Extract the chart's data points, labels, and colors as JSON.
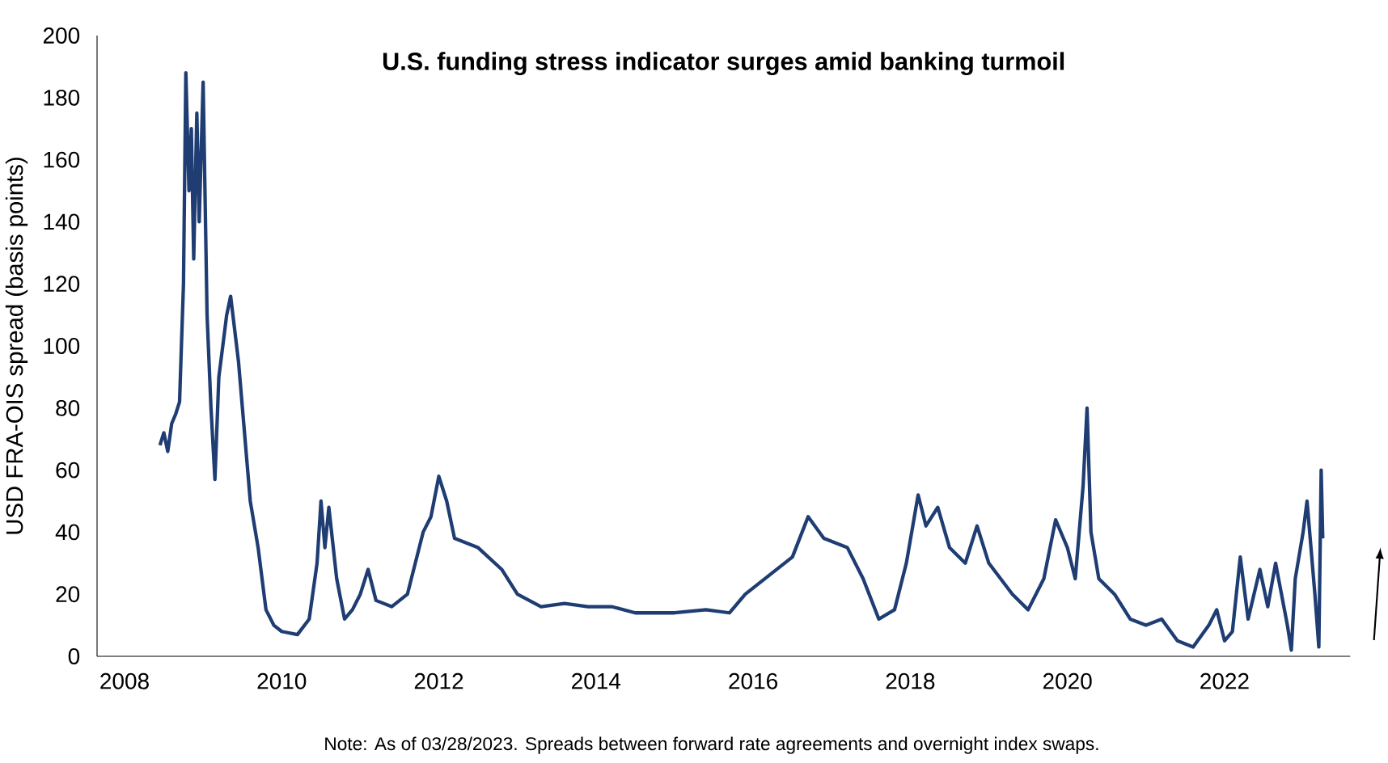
{
  "chart_data": {
    "type": "line",
    "title": "**U.S. funding stress indicator surges amid banking turmoil**",
    "ylabel": "USD FRA-OIS spread (basis points)",
    "annotations": [
      "Note: As of 03/28/2023. Spreads between forward rate agreements and overnight index swaps."
    ],
    "xlim": [
      2007.65,
      2023.6
    ],
    "xticks": [
      2008,
      2010,
      2012,
      2014,
      2016,
      2018,
      2020,
      2022
    ],
    "ylim": [
      0,
      200
    ],
    "yticks": [
      0,
      20,
      40,
      60,
      80,
      100,
      120,
      140,
      160,
      180,
      200
    ],
    "grid": false,
    "marker": "none",
    "line_style": "solid",
    "series": [
      {
        "color": "#1f3d73",
        "x": [
          2008.45,
          2008.5,
          2008.55,
          2008.6,
          2008.65,
          2008.7,
          2008.75,
          2008.78,
          2008.82,
          2008.85,
          2008.88,
          2008.92,
          2008.95,
          2009.0,
          2009.05,
          2009.1,
          2009.15,
          2009.2,
          2009.25,
          2009.3,
          2009.35,
          2009.45,
          2009.5,
          2009.6,
          2009.7,
          2009.8,
          2009.9,
          2010.0,
          2010.2,
          2010.35,
          2010.45,
          2010.5,
          2010.55,
          2010.6,
          2010.7,
          2010.8,
          2010.9,
          2011.0,
          2011.1,
          2011.2,
          2011.4,
          2011.6,
          2011.8,
          2011.9,
          2012.0,
          2012.1,
          2012.2,
          2012.5,
          2012.8,
          2013.0,
          2013.3,
          2013.6,
          2013.9,
          2014.2,
          2014.5,
          2015.0,
          2015.4,
          2015.7,
          2015.9,
          2016.2,
          2016.5,
          2016.7,
          2016.9,
          2017.2,
          2017.4,
          2017.6,
          2017.8,
          2017.95,
          2018.1,
          2018.2,
          2018.35,
          2018.5,
          2018.7,
          2018.85,
          2019.0,
          2019.3,
          2019.5,
          2019.7,
          2019.85,
          2020.0,
          2020.1,
          2020.2,
          2020.25,
          2020.3,
          2020.4,
          2020.6,
          2020.8,
          2021.0,
          2021.2,
          2021.4,
          2021.6,
          2021.8,
          2021.9,
          2022.0,
          2022.1,
          2022.2,
          2022.3,
          2022.45,
          2022.55,
          2022.65,
          2022.8,
          2022.85,
          2022.9,
          2023.0,
          2023.05,
          2023.1,
          2023.15,
          2023.2,
          2023.23,
          2023.25
        ],
        "values": [
          68,
          72,
          66,
          75,
          78,
          82,
          120,
          188,
          150,
          170,
          128,
          175,
          140,
          185,
          110,
          80,
          57,
          90,
          100,
          110,
          116,
          95,
          80,
          50,
          35,
          15,
          10,
          8,
          7,
          12,
          30,
          50,
          35,
          48,
          25,
          12,
          15,
          20,
          28,
          18,
          16,
          20,
          40,
          45,
          58,
          50,
          38,
          35,
          28,
          20,
          16,
          17,
          16,
          16,
          14,
          14,
          15,
          14,
          20,
          26,
          32,
          45,
          38,
          35,
          25,
          12,
          15,
          30,
          52,
          42,
          48,
          35,
          30,
          42,
          30,
          20,
          15,
          25,
          44,
          35,
          25,
          55,
          80,
          40,
          25,
          20,
          12,
          10,
          12,
          5,
          3,
          10,
          15,
          5,
          8,
          32,
          12,
          28,
          16,
          30,
          10,
          2,
          25,
          40,
          50,
          35,
          20,
          3,
          60,
          38
        ]
      }
    ]
  }
}
